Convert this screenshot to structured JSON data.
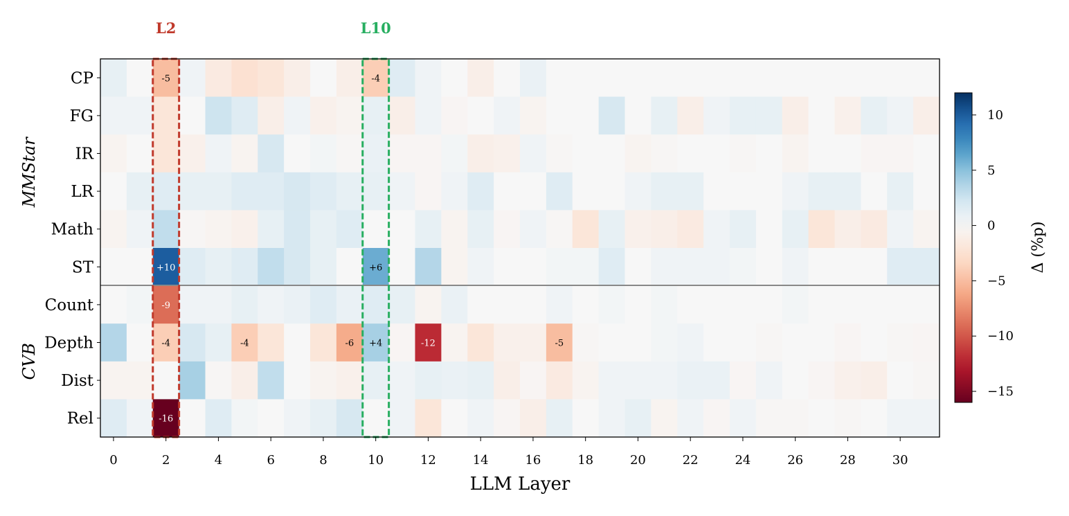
{
  "chart_data": {
    "type": "heatmap",
    "xlabel": "LLM Layer",
    "x_ticks": [
      "0",
      "2",
      "4",
      "6",
      "8",
      "10",
      "12",
      "14",
      "16",
      "18",
      "20",
      "22",
      "24",
      "26",
      "28",
      "30"
    ],
    "rows": [
      "CP",
      "FG",
      "IR",
      "LR",
      "Math",
      "ST",
      "Count",
      "Depth",
      "Dist",
      "Rel"
    ],
    "groups": [
      {
        "label": "MMStar",
        "rows": [
          "CP",
          "FG",
          "IR",
          "LR",
          "Math",
          "ST"
        ]
      },
      {
        "label": "CVB",
        "rows": [
          "Count",
          "Depth",
          "Dist",
          "Rel"
        ]
      }
    ],
    "highlights": [
      {
        "label": "L2",
        "layer": 2,
        "color": "#c0392b"
      },
      {
        "label": "L10",
        "layer": 10,
        "color": "#27ae60"
      }
    ],
    "colorbar": {
      "label": "Δ (%p)",
      "range": [
        -16,
        12
      ],
      "ticks": [
        "10",
        "5",
        "0",
        "−5",
        "−10",
        "−15"
      ],
      "colormap": "RdBu"
    },
    "values": [
      [
        1,
        0,
        -5,
        0.5,
        -1.5,
        -2.5,
        -2,
        -1,
        0,
        -1,
        -4,
        1.5,
        0.5,
        0,
        -1,
        0,
        0.8,
        0,
        0,
        0,
        0,
        0,
        0,
        0,
        0,
        0,
        0,
        0,
        0,
        0,
        0,
        0
      ],
      [
        0.5,
        0.5,
        -2,
        0,
        2.5,
        1.5,
        -1,
        0.5,
        -0.8,
        -0.5,
        1,
        -1,
        0.5,
        -0.3,
        0,
        0.5,
        -0.5,
        0,
        0,
        2,
        0,
        1,
        -1,
        0.5,
        1,
        1,
        -1,
        0,
        -0.8,
        1,
        0.5,
        -1
      ],
      [
        -0.5,
        0,
        -2,
        -0.8,
        0.5,
        -0.5,
        2,
        0,
        0.3,
        -0.2,
        0.8,
        -0.3,
        -0.3,
        0.3,
        -1,
        -0.8,
        0.5,
        -0.2,
        0,
        0,
        -0.5,
        -0.2,
        0,
        0,
        -0.2,
        0,
        -0.5,
        0,
        0,
        -0.3,
        -0.3,
        0
      ],
      [
        0,
        1,
        1.5,
        1,
        1,
        1.5,
        1.5,
        2,
        1.5,
        1,
        1,
        0.5,
        -0.3,
        0.5,
        1.5,
        0,
        0,
        1.5,
        0,
        0,
        0.5,
        1,
        1,
        0,
        0,
        0,
        0.5,
        1,
        1,
        0,
        1,
        0
      ],
      [
        -0.5,
        0.5,
        3,
        -0.2,
        -0.5,
        -0.8,
        1,
        2,
        1,
        1.5,
        0,
        0,
        1,
        -0.5,
        1,
        -0.3,
        0.5,
        -0.2,
        -2,
        1,
        -0.8,
        -1,
        -1.5,
        0.5,
        1,
        0,
        1,
        -2,
        -1,
        -1.5,
        0.5,
        -0.5
      ],
      [
        0,
        0,
        10,
        1.5,
        1,
        1.5,
        3,
        2,
        1,
        0,
        6,
        0,
        3.5,
        -0.5,
        0.5,
        0,
        0,
        0.3,
        0.3,
        1.5,
        0,
        0.5,
        0.5,
        0.5,
        0.3,
        0,
        0.5,
        0,
        0,
        0,
        1.5,
        1.5
      ],
      [
        0,
        0.3,
        -9,
        0.5,
        0.5,
        1,
        0.5,
        0.8,
        1.5,
        0.8,
        1.5,
        1,
        -0.5,
        0.8,
        0,
        0,
        0,
        0.5,
        0,
        0.3,
        0,
        0.3,
        0,
        0,
        0,
        0,
        0.3,
        0,
        0,
        0,
        0,
        0
      ],
      [
        3.5,
        0,
        -4,
        2,
        1,
        -4,
        -2,
        0,
        -2,
        -6,
        4,
        -0.3,
        -12,
        -0.5,
        -2,
        -0.8,
        -0.8,
        -5,
        -0.2,
        0,
        0,
        0.3,
        0.5,
        0,
        0,
        -0.2,
        0,
        0,
        -0.3,
        0,
        -0.2,
        -0.3
      ],
      [
        -0.5,
        -0.5,
        0,
        4,
        -0.2,
        -1,
        3,
        0,
        -0.5,
        -0.8,
        1,
        0.5,
        1,
        0.8,
        1,
        -1,
        -0.3,
        -1.5,
        -0.5,
        0.5,
        0.5,
        0.5,
        0.8,
        0.8,
        -0.3,
        0.5,
        0,
        -0.3,
        -0.8,
        -1,
        0,
        -0.2
      ],
      [
        1.5,
        0.5,
        -16,
        0,
        1.5,
        0.3,
        0,
        0.5,
        1,
        2,
        0,
        0.5,
        -2,
        0,
        0.5,
        -0.3,
        -1,
        1,
        0,
        0.5,
        1,
        -0.5,
        0.5,
        -0.3,
        0.5,
        -0.2,
        -0.2,
        0,
        -0.2,
        0,
        0.5,
        0.5
      ]
    ],
    "annotations": [
      {
        "row": 0,
        "col": 2,
        "text": "-5"
      },
      {
        "row": 0,
        "col": 10,
        "text": "-4"
      },
      {
        "row": 5,
        "col": 2,
        "text": "+10"
      },
      {
        "row": 5,
        "col": 10,
        "text": "+6"
      },
      {
        "row": 6,
        "col": 2,
        "text": "-9"
      },
      {
        "row": 7,
        "col": 2,
        "text": "-4"
      },
      {
        "row": 7,
        "col": 5,
        "text": "-4"
      },
      {
        "row": 7,
        "col": 9,
        "text": "-6"
      },
      {
        "row": 7,
        "col": 10,
        "text": "+4"
      },
      {
        "row": 7,
        "col": 12,
        "text": "-12"
      },
      {
        "row": 7,
        "col": 17,
        "text": "-5"
      },
      {
        "row": 9,
        "col": 2,
        "text": "-16"
      }
    ]
  }
}
